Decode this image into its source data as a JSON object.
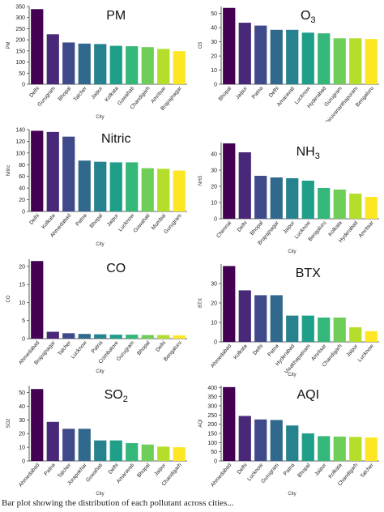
{
  "caption": "Bar plot showing the distribution of each pollutant across cities...",
  "chart_data": [
    {
      "type": "bar",
      "title": "PM",
      "xlabel": "City",
      "ylabel": "PM",
      "ylim": [
        0,
        350
      ],
      "yticks": [
        0,
        50,
        100,
        150,
        200,
        250,
        300,
        350
      ],
      "categories": [
        "Delhi",
        "Gurugram",
        "Bhopal",
        "Talcher",
        "Jaipur",
        "Kolkata",
        "Guwahati",
        "Chandigarh",
        "Amritsar",
        "Brajrajnagar"
      ],
      "values": [
        338,
        225,
        188,
        183,
        181,
        173,
        171,
        167,
        159,
        149
      ]
    },
    {
      "type": "bar",
      "title": "O",
      "title_sub": "3",
      "xlabel": "",
      "ylabel": "O3",
      "ylim": [
        0,
        55
      ],
      "yticks": [
        0,
        10,
        20,
        30,
        40,
        50
      ],
      "categories": [
        "Bhopal",
        "Jaipur",
        "Patna",
        "Delhi",
        "Amaravati",
        "Lucknow",
        "Hyderabad",
        "Gurugram",
        "Thiruvananthapuram",
        "Bengaluru"
      ],
      "values": [
        54,
        43.5,
        41.5,
        38.5,
        38.5,
        36.5,
        36,
        32.5,
        32.5,
        32
      ]
    },
    {
      "type": "bar",
      "title": "Nitric",
      "xlabel": "City",
      "ylabel": "Nitric",
      "ylim": [
        0,
        140
      ],
      "yticks": [
        0,
        20,
        40,
        60,
        80,
        100,
        120,
        140
      ],
      "categories": [
        "Delhi",
        "Kolkata",
        "Ahmedabad",
        "Patna",
        "Bhopal",
        "Jaipur",
        "Lucknow",
        "Guwahati",
        "Mumbai",
        "Gurugram"
      ],
      "values": [
        138,
        136,
        128,
        87,
        85,
        84,
        84,
        74,
        73,
        70
      ]
    },
    {
      "type": "bar",
      "title": "NH",
      "title_sub": "3",
      "xlabel": "City",
      "ylabel": "NH3",
      "ylim": [
        0,
        47
      ],
      "yticks": [
        0,
        10,
        20,
        30,
        40
      ],
      "categories": [
        "Chennai",
        "Delhi",
        "Bhopal",
        "Brajrajnagar",
        "Jaipur",
        "Lucknow",
        "Bengaluru",
        "Kolkata",
        "Hyderabad",
        "Amritsar"
      ],
      "values": [
        46.5,
        41,
        26.5,
        25.5,
        25,
        23.5,
        19,
        18,
        15.5,
        13.5
      ]
    },
    {
      "type": "bar",
      "title": "CO",
      "xlabel": "City",
      "ylabel": "CO",
      "ylim": [
        0,
        22
      ],
      "yticks": [
        0,
        5,
        10,
        15,
        20
      ],
      "categories": [
        "Ahmedabad",
        "Brajrajnagar",
        "Talcher",
        "Lucknow",
        "Patna",
        "Coimbatore",
        "Gurugram",
        "Bhopal",
        "Delhi",
        "Bengaluru"
      ],
      "values": [
        21.5,
        1.9,
        1.5,
        1.3,
        1.2,
        1.1,
        1.1,
        1.0,
        1.0,
        0.9
      ]
    },
    {
      "type": "bar",
      "title": "BTX",
      "xlabel": "City",
      "ylabel": "BTX",
      "ylim": [
        0,
        40
      ],
      "yticks": [
        0,
        10,
        20,
        30
      ],
      "categories": [
        "Ahmedabad",
        "Kolkata",
        "Delhi",
        "Patna",
        "Hyderabad",
        "Visakhapatnam",
        "Amritsar",
        "Chandigarh",
        "Jaipur",
        "Lucknow"
      ],
      "values": [
        39,
        26.5,
        24,
        24,
        13.5,
        13.5,
        12.5,
        12.5,
        7.5,
        5.5
      ]
    },
    {
      "type": "bar",
      "title": "SO",
      "title_sub": "2",
      "xlabel": "City",
      "ylabel": "SO2",
      "ylim": [
        0,
        55
      ],
      "yticks": [
        0,
        10,
        20,
        30,
        40,
        50
      ],
      "categories": [
        "Ahmedabad",
        "Patna",
        "Talcher",
        "Jorapokhar",
        "Guwahati",
        "Delhi",
        "Amaravati",
        "Bhopal",
        "Jaipur",
        "Chandigarh"
      ],
      "values": [
        52.5,
        28.5,
        23.5,
        23.5,
        15,
        15,
        13,
        12,
        10.5,
        10
      ]
    },
    {
      "type": "bar",
      "title": "AQI",
      "xlabel": "City",
      "ylabel": "AQI",
      "ylim": [
        0,
        410
      ],
      "yticks": [
        0,
        50,
        100,
        150,
        200,
        250,
        300,
        350,
        400
      ],
      "categories": [
        "Ahmedabad",
        "Delhi",
        "Lucknow",
        "Gurugram",
        "Patna",
        "Bhopal",
        "Jaipur",
        "Kolkata",
        "Chandigarh",
        "Talcher"
      ],
      "values": [
        402,
        245,
        226,
        223,
        193,
        150,
        135,
        133,
        131,
        128
      ]
    }
  ],
  "palette": [
    "#440154",
    "#482878",
    "#3e4a89",
    "#31688e",
    "#26828e",
    "#1f9e89",
    "#35b779",
    "#6ece58",
    "#b5de2b",
    "#fde725"
  ]
}
